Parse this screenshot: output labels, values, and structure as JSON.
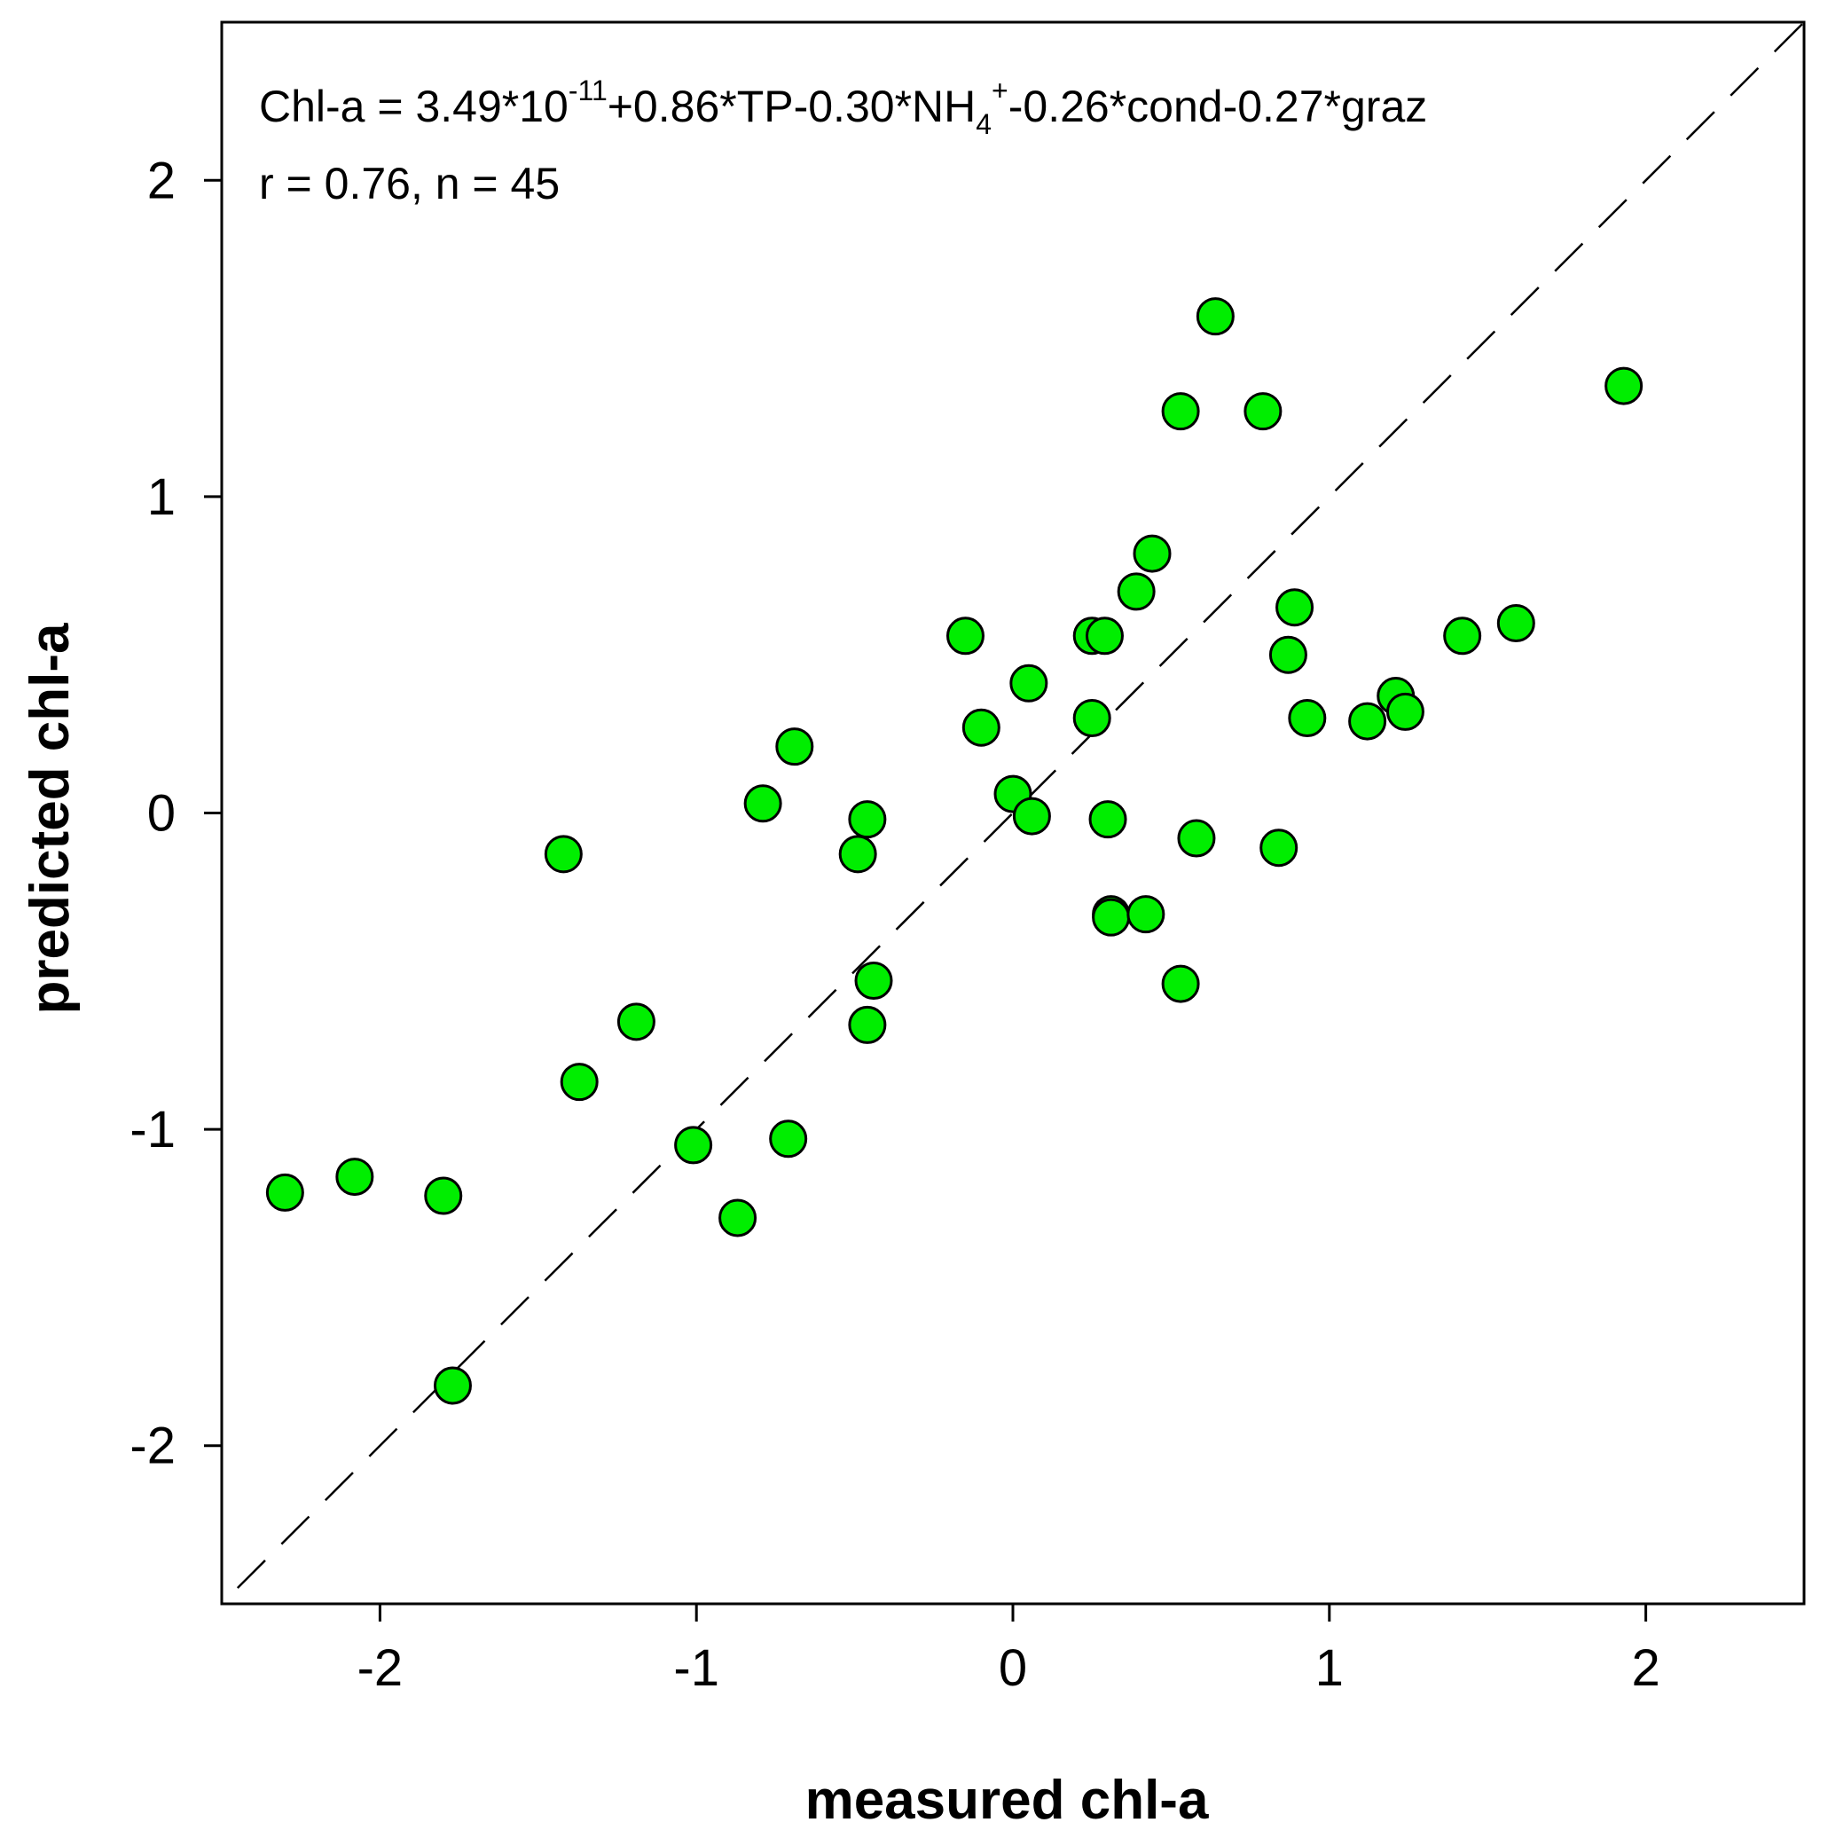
{
  "chart_data": {
    "type": "scatter",
    "title": "",
    "xlabel": "measured chl-a",
    "ylabel": "predicted chl-a",
    "xlim": [
      -2.5,
      2.5
    ],
    "ylim": [
      -2.5,
      2.5
    ],
    "x_ticks": [
      -2,
      -1,
      0,
      1,
      2
    ],
    "y_ticks": [
      -2,
      -1,
      0,
      1,
      2
    ],
    "x_tick_labels": [
      "-2",
      "-1",
      "0",
      "1",
      "2"
    ],
    "y_tick_labels": [
      "-2",
      "-1",
      "0",
      "1",
      "2"
    ],
    "grid": false,
    "legend": "none",
    "marker_color": "#00ee00",
    "marker_edge_color": "#000000",
    "reference_line": {
      "type": "1:1",
      "style": "dashed",
      "color": "#000000"
    },
    "annotation": {
      "line1": {
        "prefix": "Chl-a = 3.49*10",
        "exp": "-11",
        "mid": "+0.86*TP-0.30*NH",
        "sub": "4",
        "sup": "+",
        "suffix": "-0.26*cond-0.27*graz"
      },
      "line2": "r = 0.76, n = 45"
    },
    "series": [
      {
        "points": [
          {
            "x": -2.3,
            "y": -1.2
          },
          {
            "x": -2.08,
            "y": -1.15
          },
          {
            "x": -1.8,
            "y": -1.21
          },
          {
            "x": -1.77,
            "y": -1.81
          },
          {
            "x": -1.42,
            "y": -0.13
          },
          {
            "x": -1.37,
            "y": -0.85
          },
          {
            "x": -1.19,
            "y": -0.66
          },
          {
            "x": -1.01,
            "y": -1.05
          },
          {
            "x": -0.87,
            "y": -1.28
          },
          {
            "x": -0.79,
            "y": 0.03
          },
          {
            "x": -0.71,
            "y": -1.03
          },
          {
            "x": -0.69,
            "y": 0.21
          },
          {
            "x": -0.49,
            "y": -0.13
          },
          {
            "x": -0.46,
            "y": -0.02
          },
          {
            "x": -0.46,
            "y": -0.67
          },
          {
            "x": -0.44,
            "y": -0.53
          },
          {
            "x": -0.15,
            "y": 0.56
          },
          {
            "x": -0.1,
            "y": 0.27
          },
          {
            "x": 0.0,
            "y": 0.06
          },
          {
            "x": 0.05,
            "y": 0.41
          },
          {
            "x": 0.06,
            "y": -0.01
          },
          {
            "x": 0.25,
            "y": 0.3
          },
          {
            "x": 0.25,
            "y": 0.56
          },
          {
            "x": 0.29,
            "y": 0.56
          },
          {
            "x": 0.3,
            "y": -0.02
          },
          {
            "x": 0.31,
            "y": -0.32
          },
          {
            "x": 0.31,
            "y": -0.33
          },
          {
            "x": 0.39,
            "y": 0.7
          },
          {
            "x": 0.42,
            "y": -0.32
          },
          {
            "x": 0.44,
            "y": 0.82
          },
          {
            "x": 0.53,
            "y": 1.27
          },
          {
            "x": 0.53,
            "y": -0.54
          },
          {
            "x": 0.58,
            "y": -0.08
          },
          {
            "x": 0.64,
            "y": 1.57
          },
          {
            "x": 0.79,
            "y": 1.27
          },
          {
            "x": 0.84,
            "y": -0.11
          },
          {
            "x": 0.87,
            "y": 0.5
          },
          {
            "x": 0.89,
            "y": 0.65
          },
          {
            "x": 0.93,
            "y": 0.3
          },
          {
            "x": 1.12,
            "y": 0.29
          },
          {
            "x": 1.21,
            "y": 0.37
          },
          {
            "x": 1.24,
            "y": 0.32
          },
          {
            "x": 1.42,
            "y": 0.56
          },
          {
            "x": 1.59,
            "y": 0.6
          },
          {
            "x": 1.93,
            "y": 1.35
          }
        ]
      }
    ]
  }
}
